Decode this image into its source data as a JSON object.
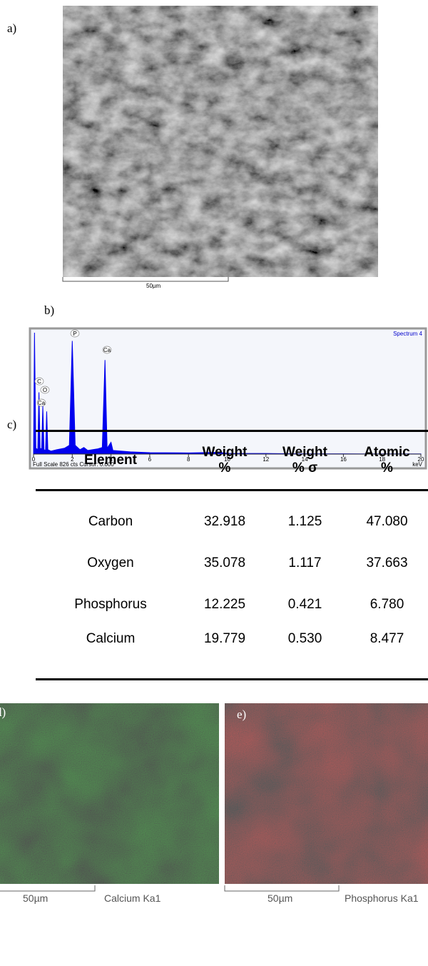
{
  "panel_a": {
    "label": "a)",
    "scale_bar": "50µm"
  },
  "panel_b": {
    "label": "b)",
    "chart_data": {
      "type": "area",
      "title": "Spectrum 4",
      "footer": "Full Scale 826 cts Cursor: 0.000",
      "x_unit": "keV",
      "x": [
        0,
        0.05,
        0.12,
        0.22,
        0.28,
        0.34,
        0.42,
        0.48,
        0.54,
        0.62,
        0.68,
        0.74,
        0.9,
        1.2,
        1.6,
        1.85,
        2.0,
        2.15,
        2.4,
        2.6,
        2.8,
        3.3,
        3.55,
        3.69,
        3.8,
        4.0,
        4.1,
        5,
        6,
        8,
        9.6,
        10,
        12,
        14,
        16,
        18,
        20
      ],
      "values": [
        0,
        826,
        40,
        30,
        420,
        40,
        35,
        330,
        30,
        25,
        290,
        30,
        20,
        30,
        40,
        60,
        770,
        60,
        30,
        45,
        25,
        35,
        45,
        640,
        40,
        80,
        25,
        15,
        10,
        8,
        12,
        5,
        4,
        2,
        2,
        1,
        1
      ],
      "color": "#0000ee",
      "xlim": [
        0,
        20
      ],
      "xticks": [
        0,
        2,
        4,
        6,
        8,
        10,
        12,
        14,
        16,
        18,
        20
      ],
      "ylim": [
        0,
        826
      ],
      "peak_labels": [
        "P",
        "Ca",
        "C",
        "O",
        "Ca"
      ]
    }
  },
  "panel_c": {
    "label": "c)",
    "table": {
      "headers": [
        "Element",
        "Weight %",
        "Weight % σ",
        "Atomic %"
      ],
      "rows": [
        [
          "Carbon",
          "32.918",
          "1.125",
          "47.080"
        ],
        [
          "Oxygen",
          "35.078",
          "1.117",
          "37.663"
        ],
        [
          "Phosphorus",
          "12.225",
          "0.421",
          "6.780"
        ],
        [
          "Calcium",
          "19.779",
          "0.530",
          "8.477"
        ]
      ]
    }
  },
  "panel_d": {
    "label": "d)",
    "scale_bar": "50µm",
    "caption": "Calcium Ka1"
  },
  "panel_e": {
    "label": "e)",
    "scale_bar": "50µm",
    "caption": "Phosphorus Ka1"
  }
}
